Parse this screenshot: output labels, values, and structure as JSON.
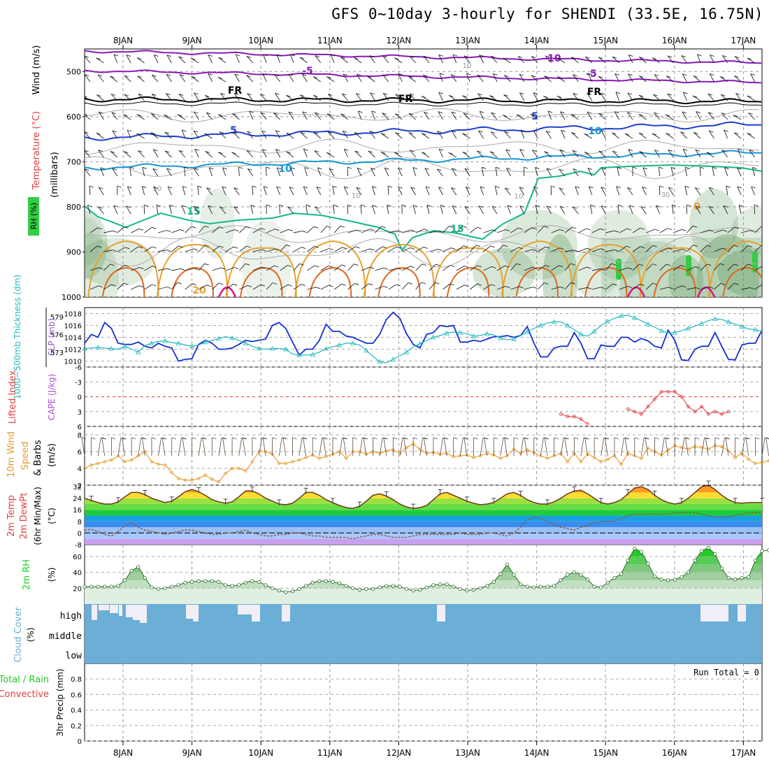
{
  "title": "GFS 0~10day 3-hourly for SHENDI (33.5E, 16.75N)",
  "colors": {
    "purple": "#8a18b8",
    "black": "#000000",
    "blue": "#1d3fd0",
    "lightblue": "#1596d6",
    "teal": "#12b88c",
    "orange": "#e8a030",
    "darkorange": "#e06820",
    "magenta": "#d8108a",
    "slp": "#1430d0",
    "thickness": "#20b8c0",
    "wind10": "#e89a2a",
    "cloud": "#6baed6",
    "rhgreen": "#22cc22",
    "lifted": "#e03030"
  },
  "chart_data": [
    {
      "id": "upper-air",
      "type": "contour",
      "x_dates": [
        "8JAN",
        "9JAN",
        "10JAN",
        "11JAN",
        "12JAN",
        "13JAN",
        "14JAN",
        "15JAN",
        "16JAN",
        "17JAN"
      ],
      "ylabel_wind": "Wind (m/s)",
      "ylabel_temp": "Temperature (°C)",
      "ylabel_rh": "RH (%)",
      "ylabel_units": "(millibars)",
      "y_ticks": [
        "500",
        "600",
        "700",
        "800",
        "900",
        "1000"
      ],
      "ylim": [
        1000,
        450
      ],
      "isotherm_labels": [
        {
          "text": "-10",
          "series": "purple"
        },
        {
          "text": "-5",
          "series": "purple"
        },
        {
          "text": "-5",
          "series": "purple"
        },
        {
          "text": "FR",
          "series": "black"
        },
        {
          "text": "FR",
          "series": "black"
        },
        {
          "text": "FR",
          "series": "black"
        },
        {
          "text": "5",
          "series": "blue"
        },
        {
          "text": "5",
          "series": "blue"
        },
        {
          "text": "10",
          "series": "lightblue"
        },
        {
          "text": "10",
          "series": "lightblue"
        },
        {
          "text": "15",
          "series": "teal"
        },
        {
          "text": "15",
          "series": "teal"
        },
        {
          "text": "20",
          "series": "orange"
        },
        {
          "text": "0",
          "series": "orange"
        }
      ],
      "rh_labels": [
        "10",
        "10",
        "10",
        "10",
        "30"
      ]
    },
    {
      "id": "slp-thickness",
      "type": "line",
      "ylabel_left": "1000~500mb Thickness (dm)",
      "ylabel_right": "SLP (mb)",
      "thickness_ticks": [
        "579",
        "576",
        "573"
      ],
      "slp_ticks": [
        "1018",
        "1016",
        "1014",
        "1012",
        "1010"
      ],
      "slp_range": [
        1009,
        1019
      ],
      "series": [
        {
          "name": "SLP",
          "values": [
            1013,
            1014.5,
            1014,
            1016.5,
            1015.5,
            1013,
            1012.8,
            1012.8,
            1013.2,
            1012.5,
            1012.2,
            1013,
            1012.5,
            1012.2,
            1010,
            1010.3,
            1010.4,
            1012.8,
            1013.5,
            1013,
            1012,
            1012,
            1012.2,
            1012.8,
            1013.5,
            1013.3,
            1013.5,
            1013.7,
            1016,
            1016.5,
            1015.5,
            1013.2,
            1011,
            1012,
            1012,
            1013.5,
            1016.2,
            1015,
            1015,
            1014.2,
            1014,
            1013.5,
            1013,
            1013,
            1014.5,
            1017,
            1018.2,
            1017.2,
            1014.6,
            1012.8,
            1012.2,
            1014.5,
            1014.8,
            1016,
            1015.8,
            1016,
            1013.2,
            1013.2,
            1013.5,
            1013.3,
            1013.7,
            1014.1,
            1014.1,
            1014.3,
            1014,
            1014.3,
            1015.8,
            1013,
            1010.7,
            1010.7,
            1012.2,
            1012.5,
            1012.5,
            1014.8,
            1013,
            1010.4,
            1010.4,
            1012.7,
            1012.5,
            1012.5,
            1014,
            1014,
            1013.2,
            1013.8,
            1013.4,
            1012.5,
            1012.2,
            1015.2,
            1013.5,
            1010.2,
            1010.1,
            1012,
            1012.5,
            1012.5,
            1014.8,
            1012.5,
            1010.3,
            1010.2,
            1012.7,
            1013,
            1013,
            1015.2
          ]
        },
        {
          "name": "Thickness",
          "values": [
            573.6,
            573.7,
            573.8,
            573.7,
            573.6,
            573.5,
            574,
            573.5,
            573,
            574.1,
            574.5,
            574.8,
            574.9,
            574.6,
            574.5,
            574.2,
            574,
            574.2,
            574.7,
            575,
            575.3,
            575.6,
            575.4,
            575,
            574.5,
            574,
            573.6,
            573.5,
            573.6,
            573.6,
            573.5,
            572.7,
            572.5,
            572.5,
            572.6,
            573,
            573.6,
            573.9,
            574.2,
            574.5,
            574.5,
            574.2,
            573.3,
            572.3,
            571.4,
            571.2,
            571.8,
            572.4,
            573,
            573.9,
            574.4,
            575,
            575.5,
            575.8,
            576.2,
            576.4,
            576.3,
            576.1,
            575.7,
            575.8,
            576.1,
            575.9,
            575.4,
            575.1,
            575.2,
            575.8,
            576.4,
            577,
            577.5,
            577.9,
            578.1,
            578.1,
            577.5,
            576.8,
            576,
            575.7,
            576.5,
            577.5,
            578.2,
            578.7,
            579.1,
            579.2,
            578.8,
            578.3,
            577.7,
            577.2,
            576.6,
            576.2,
            576.3,
            576.6,
            577,
            577.4,
            577.8,
            578.3,
            578.6,
            578.5,
            578.1,
            577.7,
            577.3,
            576.9,
            576.8,
            576.5
          ]
        }
      ]
    },
    {
      "id": "lifted-cape",
      "type": "line",
      "ylabel_lifted": "Lifted Index",
      "ylabel_cape": "CAPE (J/kg)",
      "y_ticks": [
        "-6",
        "-3",
        "0",
        "3",
        "6"
      ],
      "ylim": [
        6,
        -6
      ],
      "series": [
        {
          "name": "Lifted Index",
          "points": [
            [
              71,
              3.5
            ],
            [
              72,
              4
            ],
            [
              73,
              4
            ],
            [
              74,
              4.5
            ],
            [
              75,
              5.5
            ],
            [
              81,
              2.5
            ],
            [
              82,
              3
            ],
            [
              83,
              3.5
            ],
            [
              84,
              2
            ],
            [
              85,
              0.5
            ],
            [
              86,
              -1
            ],
            [
              87,
              -1
            ],
            [
              88,
              -1
            ],
            [
              89,
              0
            ],
            [
              90,
              2
            ],
            [
              91,
              3
            ],
            [
              92,
              2
            ],
            [
              93,
              3.5
            ],
            [
              94,
              3
            ],
            [
              95,
              3.5
            ],
            [
              96,
              3
            ]
          ]
        }
      ]
    },
    {
      "id": "wind10m",
      "type": "line",
      "ylabel": "10m Wind Speed & Barbs (m/s)",
      "y_ticks": [
        "2",
        "4",
        "6",
        "8"
      ],
      "ylim": [
        2,
        9
      ],
      "series": [
        {
          "name": "10m Wind",
          "values": [
            4,
            4.4,
            4.6,
            4.8,
            5,
            5.5,
            4.8,
            5,
            5.5,
            6,
            4.8,
            4.5,
            4.4,
            3.5,
            2.8,
            2.6,
            2.6,
            2.8,
            3.2,
            2.7,
            2.4,
            3.4,
            4,
            4,
            3.7,
            4.8,
            6,
            6,
            5.7,
            4.6,
            4.6,
            4.8,
            5,
            5.3,
            5.6,
            5.2,
            5.4,
            5.7,
            6,
            5.2,
            6,
            6,
            5.7,
            6,
            5.8,
            6.1,
            6.2,
            5.8,
            6.5,
            6.9,
            6.3,
            5.8,
            5.9,
            5.7,
            5.8,
            5.4,
            5.5,
            5.6,
            5.3,
            5.5,
            5.8,
            5.6,
            5.2,
            5.5,
            6.3,
            5.8,
            6.2,
            5.9,
            5.5,
            5.2,
            5.5,
            5.8,
            4.8,
            5.8,
            4.8,
            5.7,
            5.3,
            4.8,
            5.1,
            5.5,
            4.5,
            5.8,
            5.5,
            5.2,
            6.4,
            6,
            5.6,
            6.2,
            6.7,
            6.5,
            6.3,
            6.6,
            6.5,
            6.3,
            6.7,
            6.6,
            6.1,
            5.3,
            5.8,
            5.1,
            4.6,
            4.7,
            4.9,
            6
          ]
        }
      ]
    },
    {
      "id": "temp2m",
      "type": "area",
      "ylabel": "2m Temp 2m DewPt (6hr Min/Max) (°C)",
      "y_ticks": [
        "32",
        "24",
        "16",
        "8",
        "0",
        "-8"
      ],
      "ylim": [
        -8,
        33
      ],
      "series": [
        {
          "name": "2m Temp",
          "values": [
            24,
            22.5,
            21,
            20,
            20,
            21.5,
            25,
            28,
            28,
            26.5,
            24,
            22.5,
            21,
            22,
            25,
            28.5,
            30,
            28.5,
            26,
            23,
            21.5,
            20.5,
            21.5,
            25,
            29,
            29,
            27,
            24,
            22,
            20,
            19.5,
            20.5,
            24,
            28,
            28,
            26,
            23,
            21,
            19,
            17.5,
            17,
            18.5,
            22,
            26,
            27,
            25.5,
            23,
            20,
            18,
            17,
            17.5,
            19,
            23,
            27,
            28,
            26,
            24,
            22,
            20.5,
            19.5,
            20,
            21,
            24,
            27,
            28,
            26,
            23,
            21,
            20,
            20,
            21.5,
            24,
            27,
            29,
            29.5,
            27,
            24,
            21,
            20,
            21,
            23,
            27,
            31,
            32,
            30,
            26,
            23,
            21,
            20,
            21,
            24,
            28,
            32,
            33,
            30,
            26,
            23,
            21,
            20.5,
            21,
            21,
            21
          ]
        },
        {
          "name": "2m DewPt",
          "values": [
            2,
            2.5,
            1,
            -1,
            -2,
            1,
            5,
            7,
            4,
            2,
            1,
            0,
            -1,
            0,
            1,
            2,
            2,
            1,
            0,
            -1,
            -1,
            0,
            0,
            1,
            2,
            0,
            -1,
            -2,
            -2,
            -1,
            -1,
            0,
            0,
            -1,
            -2,
            -2,
            -3,
            -3,
            -3,
            -3,
            -4,
            -3,
            -2,
            -1,
            -1,
            -2,
            -3,
            -3,
            -3,
            -2,
            -1,
            -1,
            -1,
            -1,
            -1,
            -1,
            0,
            -1,
            -1,
            -1,
            0,
            0,
            -1,
            -2,
            0,
            4,
            9,
            11,
            10,
            8,
            6,
            4,
            3,
            2,
            4,
            5,
            7,
            8,
            8,
            8,
            10,
            12,
            13,
            13,
            13,
            13,
            13,
            13,
            14,
            14,
            14,
            14,
            13,
            12,
            11,
            11,
            11,
            12,
            13,
            14,
            14,
            14
          ]
        }
      ]
    },
    {
      "id": "rh2m",
      "type": "area",
      "ylabel": "2m RH (%)",
      "y_ticks": [
        "20",
        "40",
        "60"
      ],
      "ylim": [
        0,
        75
      ],
      "series": [
        {
          "name": "2m RH",
          "values": [
            22,
            22,
            22,
            22,
            22,
            23,
            30,
            42,
            47,
            33,
            21,
            19,
            20,
            22,
            24,
            27,
            28,
            29,
            29,
            29,
            28,
            24,
            23,
            24,
            27,
            29,
            28,
            24,
            20,
            17,
            15,
            16,
            19,
            23,
            27,
            29,
            29,
            28,
            26,
            23,
            20,
            18,
            19,
            19,
            21,
            23,
            23,
            22,
            19,
            17,
            18,
            21,
            24,
            25,
            25,
            22,
            19,
            17,
            18,
            20,
            23,
            28,
            38,
            50,
            37,
            25,
            22,
            21,
            22,
            22,
            23,
            30,
            37,
            40,
            37,
            31,
            22,
            21,
            27,
            33,
            38,
            55,
            70,
            66,
            51,
            35,
            31,
            30,
            31,
            34,
            40,
            55,
            67,
            71,
            63,
            45,
            33,
            31,
            33,
            34,
            55,
            67,
            68,
            65
          ]
        }
      ]
    },
    {
      "id": "cloud-cover",
      "type": "bar",
      "ylabel": "Cloud Cover (%)",
      "y_labels": [
        "high",
        "middle",
        "low"
      ]
    },
    {
      "id": "precip",
      "type": "bar",
      "ylabel_total": "Total / Rain",
      "ylabel_conv": "Convective",
      "ylabel": "3hr Precip (mm)",
      "y_ticks": [
        "0",
        "0.2",
        "0.4",
        "0.6",
        "0.8"
      ],
      "ylim": [
        0,
        1
      ],
      "annotation": "Run Total = 0",
      "x_dates": [
        "8JAN",
        "9JAN",
        "10JAN",
        "11JAN",
        "12JAN",
        "13JAN",
        "14JAN",
        "15JAN",
        "16JAN",
        "17JAN"
      ]
    }
  ]
}
